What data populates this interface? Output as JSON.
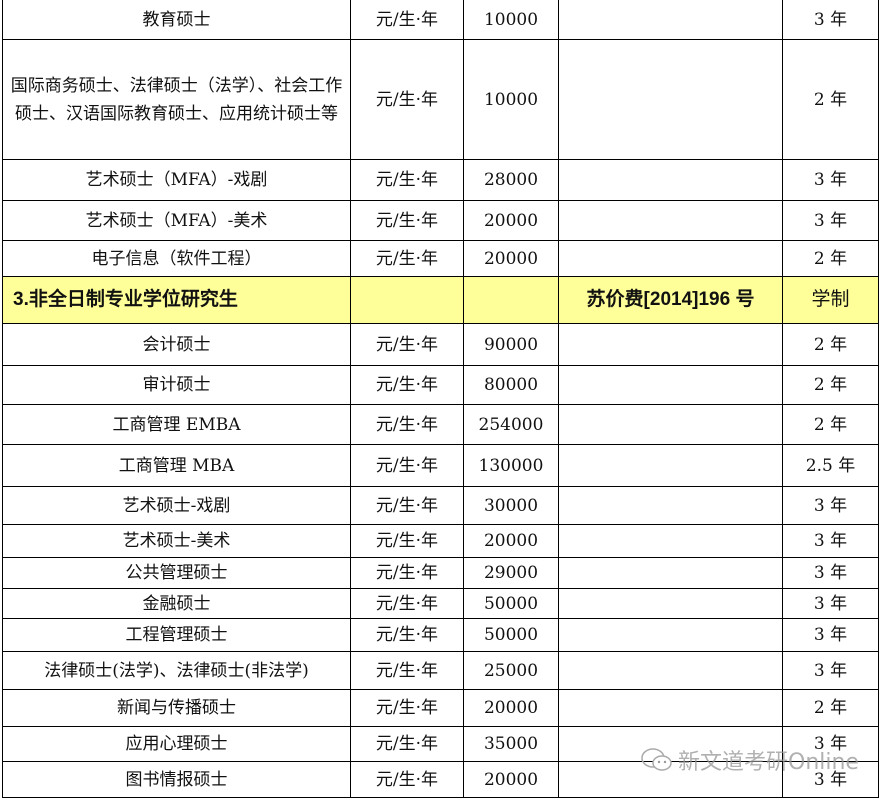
{
  "table": {
    "rows": [
      {
        "name": "教育硕士",
        "unit": "元/生·年",
        "fee": "10000",
        "doc": "",
        "years": "3 年"
      },
      {
        "name": "国际商务硕士、法律硕士（法学）、社会工作硕士、汉语国际教育硕士、应用统计硕士等",
        "unit": "元/生·年",
        "fee": "10000",
        "doc": "",
        "years": "2 年"
      },
      {
        "name": "艺术硕士（MFA）-戏剧",
        "unit": "元/生·年",
        "fee": "28000",
        "doc": "",
        "years": "3 年"
      },
      {
        "name": "艺术硕士（MFA）-美术",
        "unit": "元/生·年",
        "fee": "20000",
        "doc": "",
        "years": "3 年"
      },
      {
        "name": "电子信息（软件工程）",
        "unit": "元/生·年",
        "fee": "20000",
        "doc": "",
        "years": "2 年"
      },
      {
        "section": true,
        "name": "3.非全日制专业学位研究生",
        "unit": "",
        "fee": "",
        "doc": "苏价费[2014]196 号",
        "years": "学制"
      },
      {
        "name": "会计硕士",
        "unit": "元/生·年",
        "fee": "90000",
        "doc": "",
        "years": "2 年"
      },
      {
        "name": "审计硕士",
        "unit": "元/生·年",
        "fee": "80000",
        "doc": "",
        "years": "2 年"
      },
      {
        "name": "工商管理 EMBA",
        "unit": "元/生·年",
        "fee": "254000",
        "doc": "",
        "years": "2 年"
      },
      {
        "name": "工商管理 MBA",
        "unit": "元/生·年",
        "fee": "130000",
        "doc": "",
        "years": "2.5 年"
      },
      {
        "name": "艺术硕士-戏剧",
        "unit": "元/生·年",
        "fee": "30000",
        "doc": "",
        "years": "3 年"
      },
      {
        "name": "艺术硕士-美术",
        "unit": "元/生·年",
        "fee": "20000",
        "doc": "",
        "years": "3 年"
      },
      {
        "name": "公共管理硕士",
        "unit": "元/生·年",
        "fee": "29000",
        "doc": "",
        "years": "3 年"
      },
      {
        "name": "金融硕士",
        "unit": "元/生·年",
        "fee": "50000",
        "doc": "",
        "years": "3 年"
      },
      {
        "name": "工程管理硕士",
        "unit": "元/生·年",
        "fee": "50000",
        "doc": "",
        "years": "3 年"
      },
      {
        "name": "法律硕士(法学)、法律硕士(非法学)",
        "unit": "元/生·年",
        "fee": "25000",
        "doc": "",
        "years": "3 年"
      },
      {
        "name": "新闻与传播硕士",
        "unit": "元/生·年",
        "fee": "20000",
        "doc": "",
        "years": "2 年"
      },
      {
        "name": "应用心理硕士",
        "unit": "元/生·年",
        "fee": "35000",
        "doc": "",
        "years": "3 年"
      },
      {
        "name": "图书情报硕士",
        "unit": "元/生·年",
        "fee": "20000",
        "doc": "",
        "years": "3 年"
      }
    ]
  },
  "section_color": "#ffff99",
  "watermark": {
    "icon": "wechat-icon",
    "text": "新文道考研Online"
  }
}
